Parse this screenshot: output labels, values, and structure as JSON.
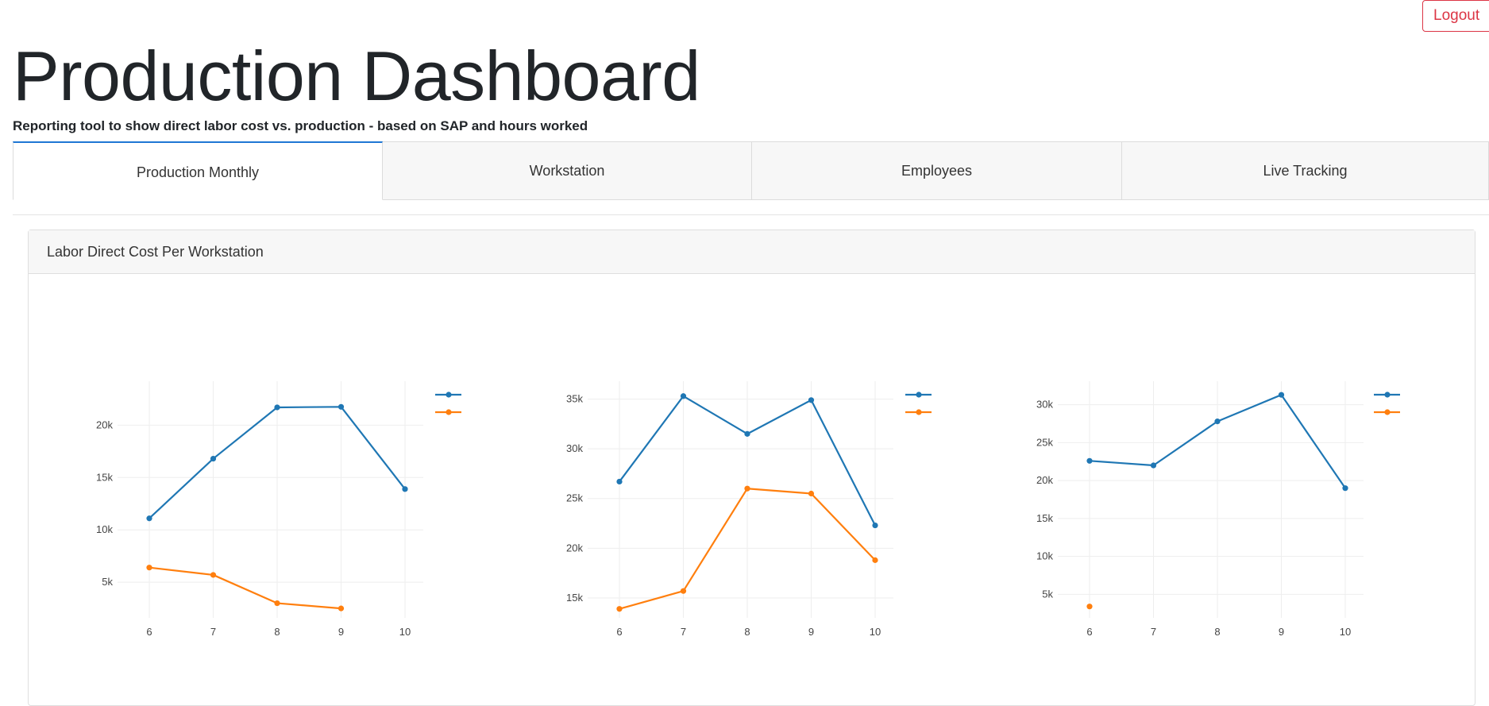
{
  "header": {
    "logout_label": "Logout",
    "title": "Production Dashboard",
    "subtitle": "Reporting tool to show direct labor cost vs. production - based on SAP and hours worked"
  },
  "tabs": [
    {
      "label": "Production Monthly",
      "active": true
    },
    {
      "label": "Workstation",
      "active": false
    },
    {
      "label": "Employees",
      "active": false
    },
    {
      "label": "Live Tracking",
      "active": false
    }
  ],
  "card": {
    "title": "Labor Direct Cost Per Workstation"
  },
  "colors": {
    "series_a": "#1f77b4",
    "series_b": "#ff7f0e",
    "accent": "#1f77d4",
    "logout": "#dc3545"
  },
  "chart_data": [
    {
      "type": "line",
      "x": [
        6,
        7,
        8,
        9,
        10
      ],
      "xticks": [
        6,
        7,
        8,
        9,
        10
      ],
      "yticks": [
        5000,
        10000,
        15000,
        20000
      ],
      "ytick_labels": [
        "5k",
        "10k",
        "15k",
        "20k"
      ],
      "ylim": [
        1600,
        24200
      ],
      "grid": true,
      "legend_position": "top-right",
      "series": [
        {
          "values": [
            11100,
            16800,
            21700,
            21750,
            13900
          ],
          "color": "#1f77b4"
        },
        {
          "values": [
            6400,
            5700,
            3000,
            2500,
            null
          ],
          "color": "#ff7f0e"
        }
      ]
    },
    {
      "type": "line",
      "x": [
        6,
        7,
        8,
        9,
        10
      ],
      "xticks": [
        6,
        7,
        8,
        9,
        10
      ],
      "yticks": [
        15000,
        20000,
        25000,
        30000,
        35000
      ],
      "ytick_labels": [
        "15k",
        "20k",
        "25k",
        "30k",
        "35k"
      ],
      "ylim": [
        13000,
        36800
      ],
      "grid": true,
      "legend_position": "top-right",
      "series": [
        {
          "values": [
            26700,
            35300,
            31500,
            34900,
            22300
          ],
          "color": "#1f77b4"
        },
        {
          "values": [
            13900,
            15700,
            26000,
            25500,
            18800
          ],
          "color": "#ff7f0e"
        }
      ]
    },
    {
      "type": "line",
      "x": [
        6,
        7,
        8,
        9,
        10
      ],
      "xticks": [
        6,
        7,
        8,
        9,
        10
      ],
      "yticks": [
        5000,
        10000,
        15000,
        20000,
        25000,
        30000
      ],
      "ytick_labels": [
        "5k",
        "10k",
        "15k",
        "20k",
        "25k",
        "30k"
      ],
      "ylim": [
        1900,
        33100
      ],
      "grid": true,
      "legend_position": "top-right",
      "series": [
        {
          "values": [
            22600,
            22000,
            27800,
            31300,
            19000
          ],
          "color": "#1f77b4"
        },
        {
          "values": [
            3400,
            null,
            null,
            null,
            null
          ],
          "color": "#ff7f0e"
        }
      ]
    }
  ]
}
